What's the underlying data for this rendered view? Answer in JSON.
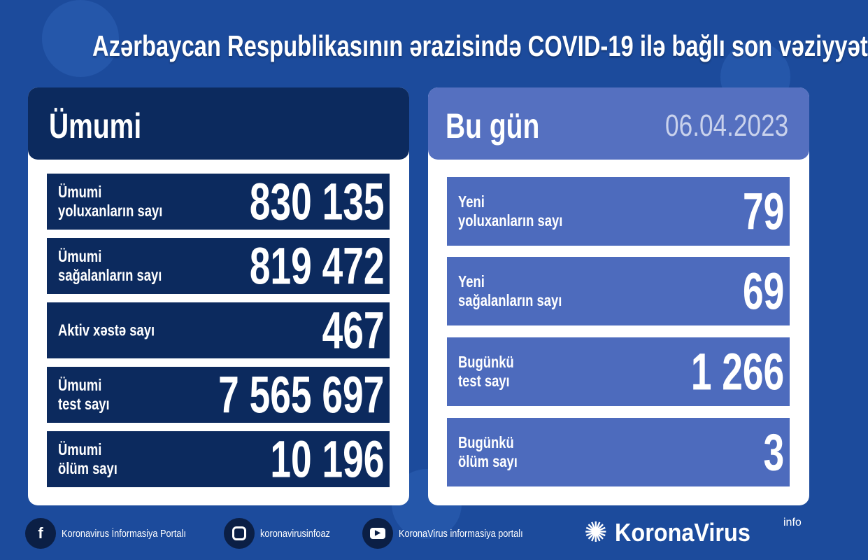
{
  "title": "Azərbaycan Respublikasının ərazisində COVID-19 ilə bağlı son vəziyyət",
  "colors": {
    "background": "#1c4b9c",
    "navy": "#0c2a5e",
    "light_blue": "#4d6bbd"
  },
  "total": {
    "heading": "Ümumi",
    "rows": [
      {
        "label": "Ümumi\nyoluxanların sayı",
        "value": "830 135"
      },
      {
        "label": "Ümumi\nsağalanların sayı",
        "value": "819 472"
      },
      {
        "label": "Aktiv xəstə sayı",
        "value": "467"
      },
      {
        "label": "Ümumi\ntest sayı",
        "value": "7 565 697"
      },
      {
        "label": "Ümumi\nölüm sayı",
        "value": "10 196"
      }
    ]
  },
  "today": {
    "heading": "Bu gün",
    "date": "06.04.2023",
    "rows": [
      {
        "label": "Yeni\nyoluxanların sayı",
        "value": "79"
      },
      {
        "label": "Yeni\nsağalanların sayı",
        "value": "69"
      },
      {
        "label": "Bugünkü\ntest sayı",
        "value": "1 266"
      },
      {
        "label": "Bugünkü\nölüm sayı",
        "value": "3"
      }
    ]
  },
  "footer": {
    "facebook": "Koronavirus İnformasiya Portalı",
    "instagram": "koronavirusinfoaz",
    "youtube": "KoronaVirus informasiya portalı",
    "logo": "KoronaVirus",
    "logo_sup": "info"
  }
}
